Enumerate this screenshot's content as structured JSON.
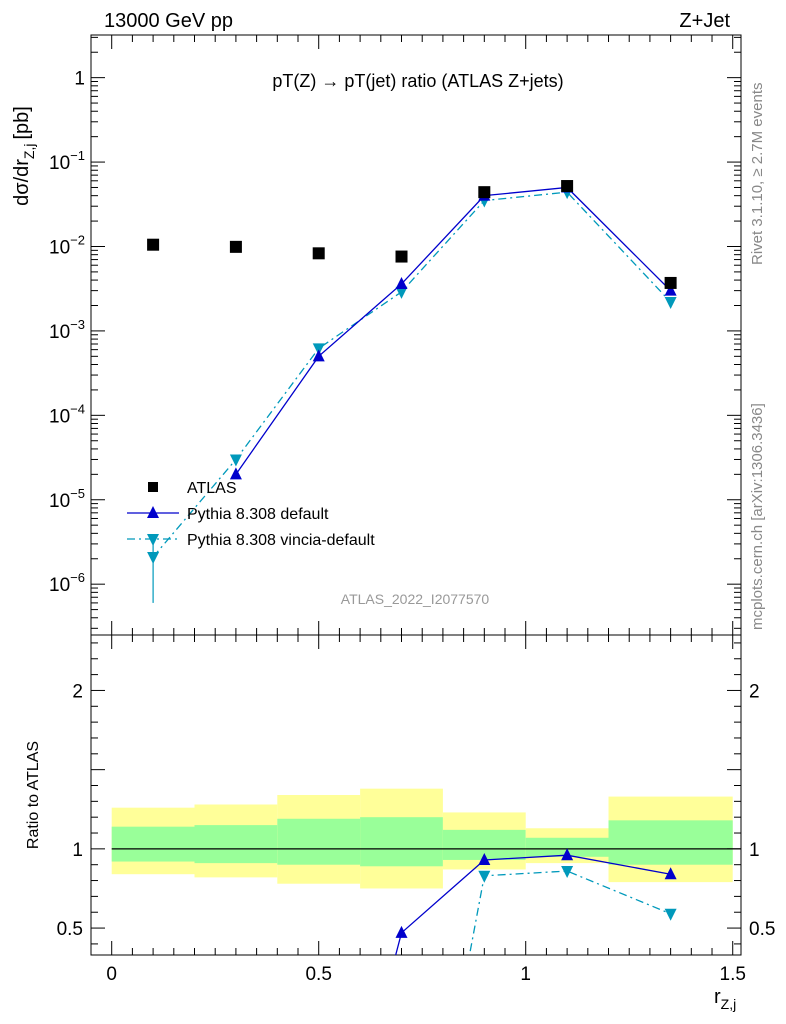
{
  "header": {
    "left": "13000 GeV pp",
    "right": "Z+Jet"
  },
  "side_labels": {
    "rivet": "Rivet 3.1.10, ≥ 2.7M events",
    "mcplots": "mcplots.cern.ch [arXiv:1306.3436]"
  },
  "watermark": "ATLAS_2022_I2077570",
  "chart_data": [
    {
      "type": "scatter",
      "panel": "main",
      "title": "pT(Z) → pT(jet) ratio (ATLAS Z+jets)",
      "xlabel": "r",
      "xlabel_sub": "Z,j",
      "ylabel": "dσ/dr",
      "ylabel_sub": "Z,j",
      "ylabel_unit": "[pb]",
      "xlim": [
        -0.05,
        1.52
      ],
      "ylim": [
        2.5e-07,
        3.2
      ],
      "yscale": "log",
      "y_ticks": [
        {
          "mant": "",
          "exp": "",
          "text": "1",
          "value": 1
        },
        {
          "mant": "10",
          "exp": "−1",
          "value": 0.1
        },
        {
          "mant": "10",
          "exp": "−2",
          "value": 0.01
        },
        {
          "mant": "10",
          "exp": "−3",
          "value": 0.001
        },
        {
          "mant": "10",
          "exp": "−4",
          "value": 0.0001
        },
        {
          "mant": "10",
          "exp": "−5",
          "value": 1e-05
        },
        {
          "mant": "10",
          "exp": "−6",
          "value": 1e-06
        }
      ],
      "legend_position": "bottom-left",
      "series": [
        {
          "name": "ATLAS",
          "marker": "square",
          "color": "#000000",
          "x": [
            0.1,
            0.3,
            0.5,
            0.7,
            0.9,
            1.1,
            1.35
          ],
          "y": [
            0.0105,
            0.0099,
            0.0083,
            0.0076,
            0.044,
            0.052,
            0.0037
          ]
        },
        {
          "name": "Pythia 8.308 default",
          "marker": "triangle-up",
          "line": "solid",
          "color": "#0000cc",
          "x": [
            0.3,
            0.5,
            0.7,
            0.9,
            1.1,
            1.35
          ],
          "y": [
            2e-05,
            0.0005,
            0.0036,
            0.04,
            0.05,
            0.003
          ]
        },
        {
          "name": "Pythia 8.308 vincia-default",
          "marker": "triangle-down",
          "line": "dashdot",
          "color": "#0099bb",
          "x": [
            0.1,
            0.3,
            0.5,
            0.7,
            0.9,
            1.1,
            1.35
          ],
          "y": [
            2.1e-06,
            3e-05,
            0.00062,
            0.0029,
            0.035,
            0.044,
            0.0022
          ],
          "yerr_low": [
            1.5e-06,
            0,
            0,
            0,
            0,
            0,
            0
          ],
          "yerr_high": [
            1.4e-06,
            0,
            0,
            0,
            0,
            0,
            0
          ]
        }
      ]
    },
    {
      "type": "line",
      "panel": "ratio",
      "ylabel": "Ratio to ATLAS",
      "xlim": [
        -0.05,
        1.52
      ],
      "ylim": [
        0.33,
        2.35
      ],
      "x_ticks": [
        "0",
        "0.5",
        "1",
        "1.5"
      ],
      "x_tick_values": [
        0,
        0.5,
        1,
        1.5
      ],
      "y_ticks": [
        "0.5",
        "1",
        "2"
      ],
      "y_tick_values": [
        0.5,
        1,
        2
      ],
      "bands": {
        "x_edges": [
          0,
          0.2,
          0.4,
          0.6,
          0.8,
          1.0,
          1.2,
          1.5
        ],
        "yellow_low": [
          0.84,
          0.82,
          0.78,
          0.75,
          0.87,
          0.91,
          0.79
        ],
        "yellow_high": [
          1.26,
          1.28,
          1.34,
          1.38,
          1.23,
          1.13,
          1.33
        ],
        "green_low": [
          0.92,
          0.91,
          0.9,
          0.89,
          0.93,
          0.95,
          0.9
        ],
        "green_high": [
          1.14,
          1.15,
          1.19,
          1.2,
          1.12,
          1.07,
          1.18
        ],
        "yellow_color": "#ffff99",
        "green_color": "#99ff99"
      },
      "series": [
        {
          "name": "Pythia 8.308 default",
          "color": "#0000cc",
          "marker": "triangle-up",
          "x": [
            0.7,
            0.9,
            1.1,
            1.35
          ],
          "y": [
            0.47,
            0.93,
            0.96,
            0.84
          ]
        },
        {
          "name": "Pythia 8.308 vincia-default",
          "color": "#0099bb",
          "marker": "triangle-down",
          "x": [
            0.9,
            1.1,
            1.35
          ],
          "y": [
            0.83,
            0.86,
            0.59
          ]
        }
      ]
    }
  ]
}
